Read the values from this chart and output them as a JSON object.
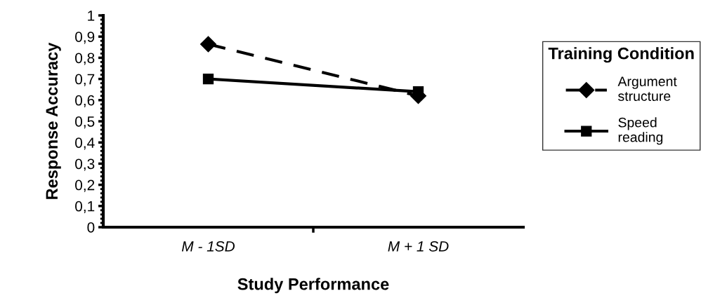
{
  "chart_data": {
    "type": "line",
    "xlabel": "Study Performance",
    "ylabel": "Response Accuracy",
    "legend_title": "Training Condition",
    "legend": "right",
    "grid": false,
    "categories": [
      "M - 1SD",
      "M + 1 SD"
    ],
    "ylim": [
      0,
      1
    ],
    "yticks": [
      0,
      {
        "value": 0.1,
        "label": "0,1"
      },
      {
        "value": 0.2,
        "label": "0,2"
      },
      {
        "value": 0.3,
        "label": "0,3"
      },
      {
        "value": 0.4,
        "label": "0,4"
      },
      {
        "value": 0.5,
        "label": "0,5"
      },
      {
        "value": 0.6,
        "label": "0,6"
      },
      {
        "value": 0.7,
        "label": "0,7"
      },
      {
        "value": 0.8,
        "label": "0,8"
      },
      {
        "value": 0.9,
        "label": "0,9"
      },
      1
    ],
    "series": [
      {
        "name": "Argument\nstructure",
        "color": "#000000",
        "values": [
          0.864,
          0.62
        ],
        "marker": "diamond",
        "line_style": "dashed"
      },
      {
        "name": "Speed\nreading",
        "color": "#000000",
        "values": [
          0.7,
          0.64
        ],
        "marker": "square",
        "line_style": "solid"
      }
    ]
  }
}
